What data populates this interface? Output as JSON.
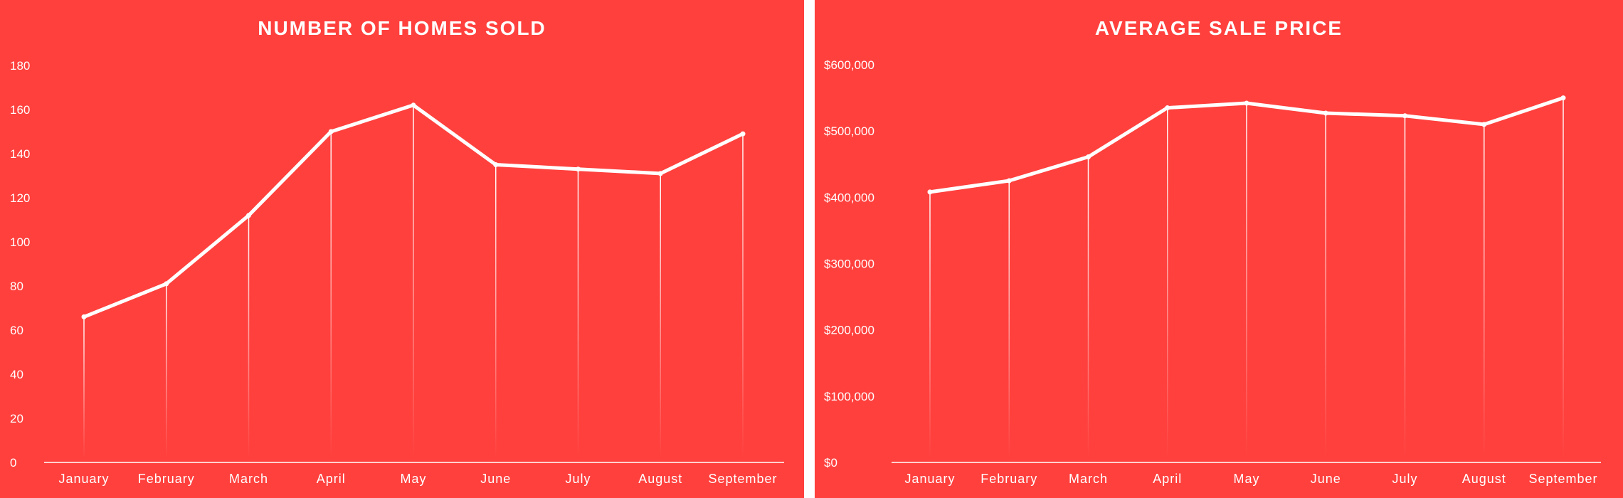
{
  "colors": {
    "background": "#ff403d",
    "foreground": "#ffffff"
  },
  "chart_data": [
    {
      "type": "line",
      "title": "NUMBER OF HOMES SOLD",
      "xlabel": "",
      "ylabel": "",
      "categories": [
        "January",
        "February",
        "March",
        "April",
        "May",
        "June",
        "July",
        "August",
        "September"
      ],
      "values": [
        66,
        81,
        112,
        150,
        162,
        135,
        133,
        131,
        149
      ],
      "ylim": [
        0,
        180
      ],
      "yticks": [
        "0",
        "20",
        "40",
        "60",
        "80",
        "100",
        "120",
        "140",
        "160",
        "180"
      ],
      "grid": false,
      "drop_lines": true
    },
    {
      "type": "line",
      "title": "AVERAGE SALE PRICE",
      "xlabel": "",
      "ylabel": "",
      "categories": [
        "January",
        "February",
        "March",
        "April",
        "May",
        "June",
        "July",
        "August",
        "September"
      ],
      "values": [
        408000,
        425000,
        461000,
        535000,
        542000,
        527000,
        523000,
        510000,
        550000
      ],
      "ylim": [
        0,
        600000
      ],
      "yticks": [
        "$0",
        "$100,000",
        "$200,000",
        "$300,000",
        "$400,000",
        "$500,000",
        "$600,000"
      ],
      "grid": false,
      "drop_lines": true
    }
  ]
}
